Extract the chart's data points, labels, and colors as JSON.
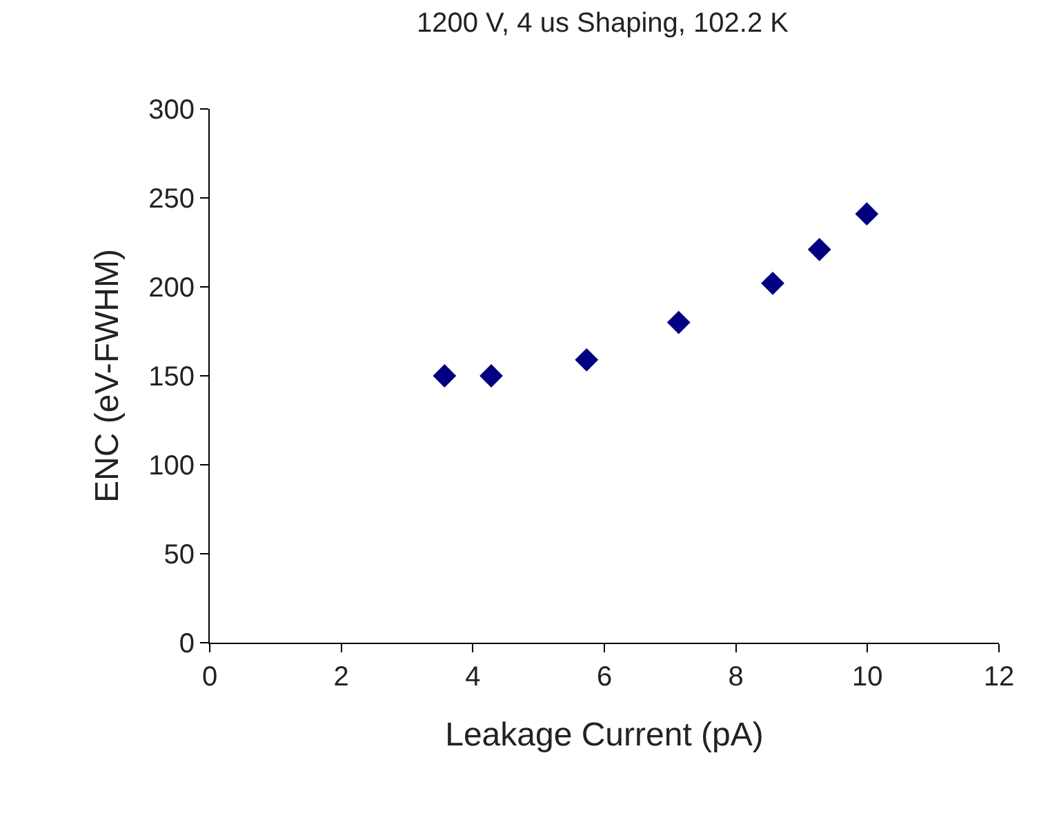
{
  "chart_data": {
    "type": "scatter",
    "title": "1200 V, 4 us Shaping, 102.2 K",
    "xlabel": "Leakage Current (pA)",
    "ylabel": "ENC (eV-FWHM)",
    "x": [
      3.57,
      4.28,
      5.73,
      7.13,
      8.56,
      9.27,
      9.99
    ],
    "series": [
      {
        "color": "#000080",
        "values": [
          150,
          150,
          159,
          180,
          202,
          221,
          241
        ]
      }
    ],
    "xlim": [
      0,
      12
    ],
    "xticks": [
      0,
      2,
      4,
      6,
      8,
      10,
      12
    ],
    "ylim": [
      0,
      300
    ],
    "yticks": [
      0,
      50,
      100,
      150,
      200,
      250,
      300
    ],
    "marker": "diamond",
    "legend": false
  }
}
